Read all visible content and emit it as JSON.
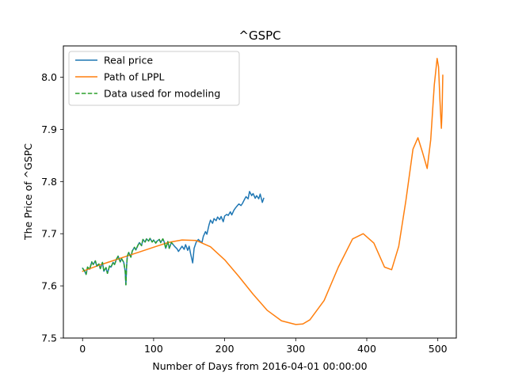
{
  "chart_data": {
    "type": "line",
    "title": "^GSPC",
    "xlabel": "Number of Days from 2016-04-01 00:00:00",
    "ylabel": "The Price of ^GSPC",
    "xlim": [
      -27,
      526
    ],
    "ylim": [
      7.5,
      8.06
    ],
    "xticks": [
      0,
      100,
      200,
      300,
      400,
      500
    ],
    "yticks": [
      7.5,
      7.6,
      7.7,
      7.8,
      7.9,
      8.0
    ],
    "xtick_labels": [
      "0",
      "100",
      "200",
      "300",
      "400",
      "500"
    ],
    "ytick_labels": [
      "7.5",
      "7.6",
      "7.7",
      "7.8",
      "7.9",
      "8.0"
    ],
    "grid": false,
    "legend_position": "top-left",
    "series": [
      {
        "name": "Real price",
        "color": "#1f77b4",
        "style": "solid",
        "x": [
          0,
          3,
          5,
          7,
          10,
          13,
          15,
          18,
          20,
          23,
          25,
          28,
          30,
          33,
          35,
          38,
          40,
          43,
          45,
          48,
          50,
          53,
          55,
          58,
          60,
          61,
          62,
          63,
          65,
          68,
          70,
          73,
          75,
          78,
          80,
          83,
          85,
          88,
          90,
          93,
          95,
          98,
          100,
          103,
          105,
          108,
          110,
          113,
          115,
          117,
          120,
          122,
          125,
          127,
          130,
          133,
          135,
          138,
          140,
          143,
          145,
          148,
          150,
          152,
          155,
          157,
          160,
          163,
          165,
          168,
          170,
          173,
          175,
          178,
          180,
          183,
          185,
          188,
          190,
          193,
          195,
          198,
          200,
          203,
          205,
          208,
          210,
          213,
          215,
          218,
          220,
          223,
          225,
          228,
          230,
          233,
          235,
          238,
          240,
          243,
          245,
          248,
          250,
          253,
          255
        ],
        "values": [
          7.634,
          7.628,
          7.622,
          7.636,
          7.632,
          7.646,
          7.641,
          7.648,
          7.638,
          7.642,
          7.633,
          7.645,
          7.628,
          7.635,
          7.624,
          7.638,
          7.636,
          7.645,
          7.641,
          7.652,
          7.657,
          7.646,
          7.652,
          7.645,
          7.628,
          7.602,
          7.638,
          7.657,
          7.664,
          7.655,
          7.667,
          7.674,
          7.669,
          7.678,
          7.683,
          7.677,
          7.689,
          7.684,
          7.69,
          7.686,
          7.691,
          7.684,
          7.688,
          7.682,
          7.686,
          7.689,
          7.683,
          7.69,
          7.684,
          7.672,
          7.685,
          7.672,
          7.683,
          7.68,
          7.675,
          7.671,
          7.666,
          7.672,
          7.676,
          7.67,
          7.679,
          7.668,
          7.676,
          7.662,
          7.644,
          7.672,
          7.684,
          7.689,
          7.686,
          7.683,
          7.695,
          7.704,
          7.699,
          7.717,
          7.726,
          7.72,
          7.729,
          7.725,
          7.732,
          7.727,
          7.733,
          7.723,
          7.734,
          7.737,
          7.735,
          7.742,
          7.736,
          7.745,
          7.749,
          7.754,
          7.757,
          7.754,
          7.758,
          7.766,
          7.771,
          7.767,
          7.781,
          7.773,
          7.777,
          7.768,
          7.773,
          7.767,
          7.776,
          7.76,
          7.768
        ]
      },
      {
        "name": "Path of LPPL",
        "color": "#ff7f0e",
        "style": "solid",
        "x": [
          0,
          20,
          40,
          60,
          80,
          100,
          120,
          140,
          160,
          180,
          200,
          220,
          240,
          260,
          280,
          300,
          310,
          320,
          340,
          360,
          380,
          395,
          410,
          425,
          435,
          445,
          455,
          465,
          472,
          478,
          485,
          490,
          495,
          499,
          501,
          503,
          505,
          506,
          507
        ],
        "values": [
          7.628,
          7.638,
          7.647,
          7.656,
          7.665,
          7.674,
          7.683,
          7.688,
          7.687,
          7.675,
          7.65,
          7.618,
          7.584,
          7.553,
          7.533,
          7.526,
          7.527,
          7.535,
          7.572,
          7.636,
          7.69,
          7.7,
          7.682,
          7.636,
          7.631,
          7.676,
          7.763,
          7.862,
          7.884,
          7.858,
          7.825,
          7.88,
          7.985,
          8.036,
          8.02,
          7.955,
          7.902,
          7.935,
          8.004
        ]
      },
      {
        "name": "Data used for modeling",
        "color": "#2ca02c",
        "style": "dashed",
        "x": [
          0,
          3,
          5,
          7,
          10,
          13,
          15,
          18,
          20,
          23,
          25,
          28,
          30,
          33,
          35,
          38,
          40,
          43,
          45,
          48,
          50,
          53,
          55,
          58,
          60,
          61,
          62,
          63,
          65,
          68,
          70,
          73,
          75,
          78,
          80,
          83,
          85,
          88,
          90,
          93,
          95,
          98,
          100,
          103,
          105,
          108,
          110,
          113,
          115,
          117,
          120,
          122,
          125,
          127
        ],
        "values": [
          7.634,
          7.628,
          7.622,
          7.636,
          7.632,
          7.646,
          7.641,
          7.648,
          7.638,
          7.642,
          7.633,
          7.645,
          7.628,
          7.635,
          7.624,
          7.638,
          7.636,
          7.645,
          7.641,
          7.652,
          7.657,
          7.646,
          7.652,
          7.645,
          7.628,
          7.602,
          7.638,
          7.657,
          7.664,
          7.655,
          7.667,
          7.674,
          7.669,
          7.678,
          7.683,
          7.677,
          7.689,
          7.684,
          7.69,
          7.686,
          7.691,
          7.684,
          7.688,
          7.682,
          7.686,
          7.689,
          7.683,
          7.69,
          7.684,
          7.672,
          7.685,
          7.672,
          7.683,
          7.68
        ]
      }
    ]
  }
}
